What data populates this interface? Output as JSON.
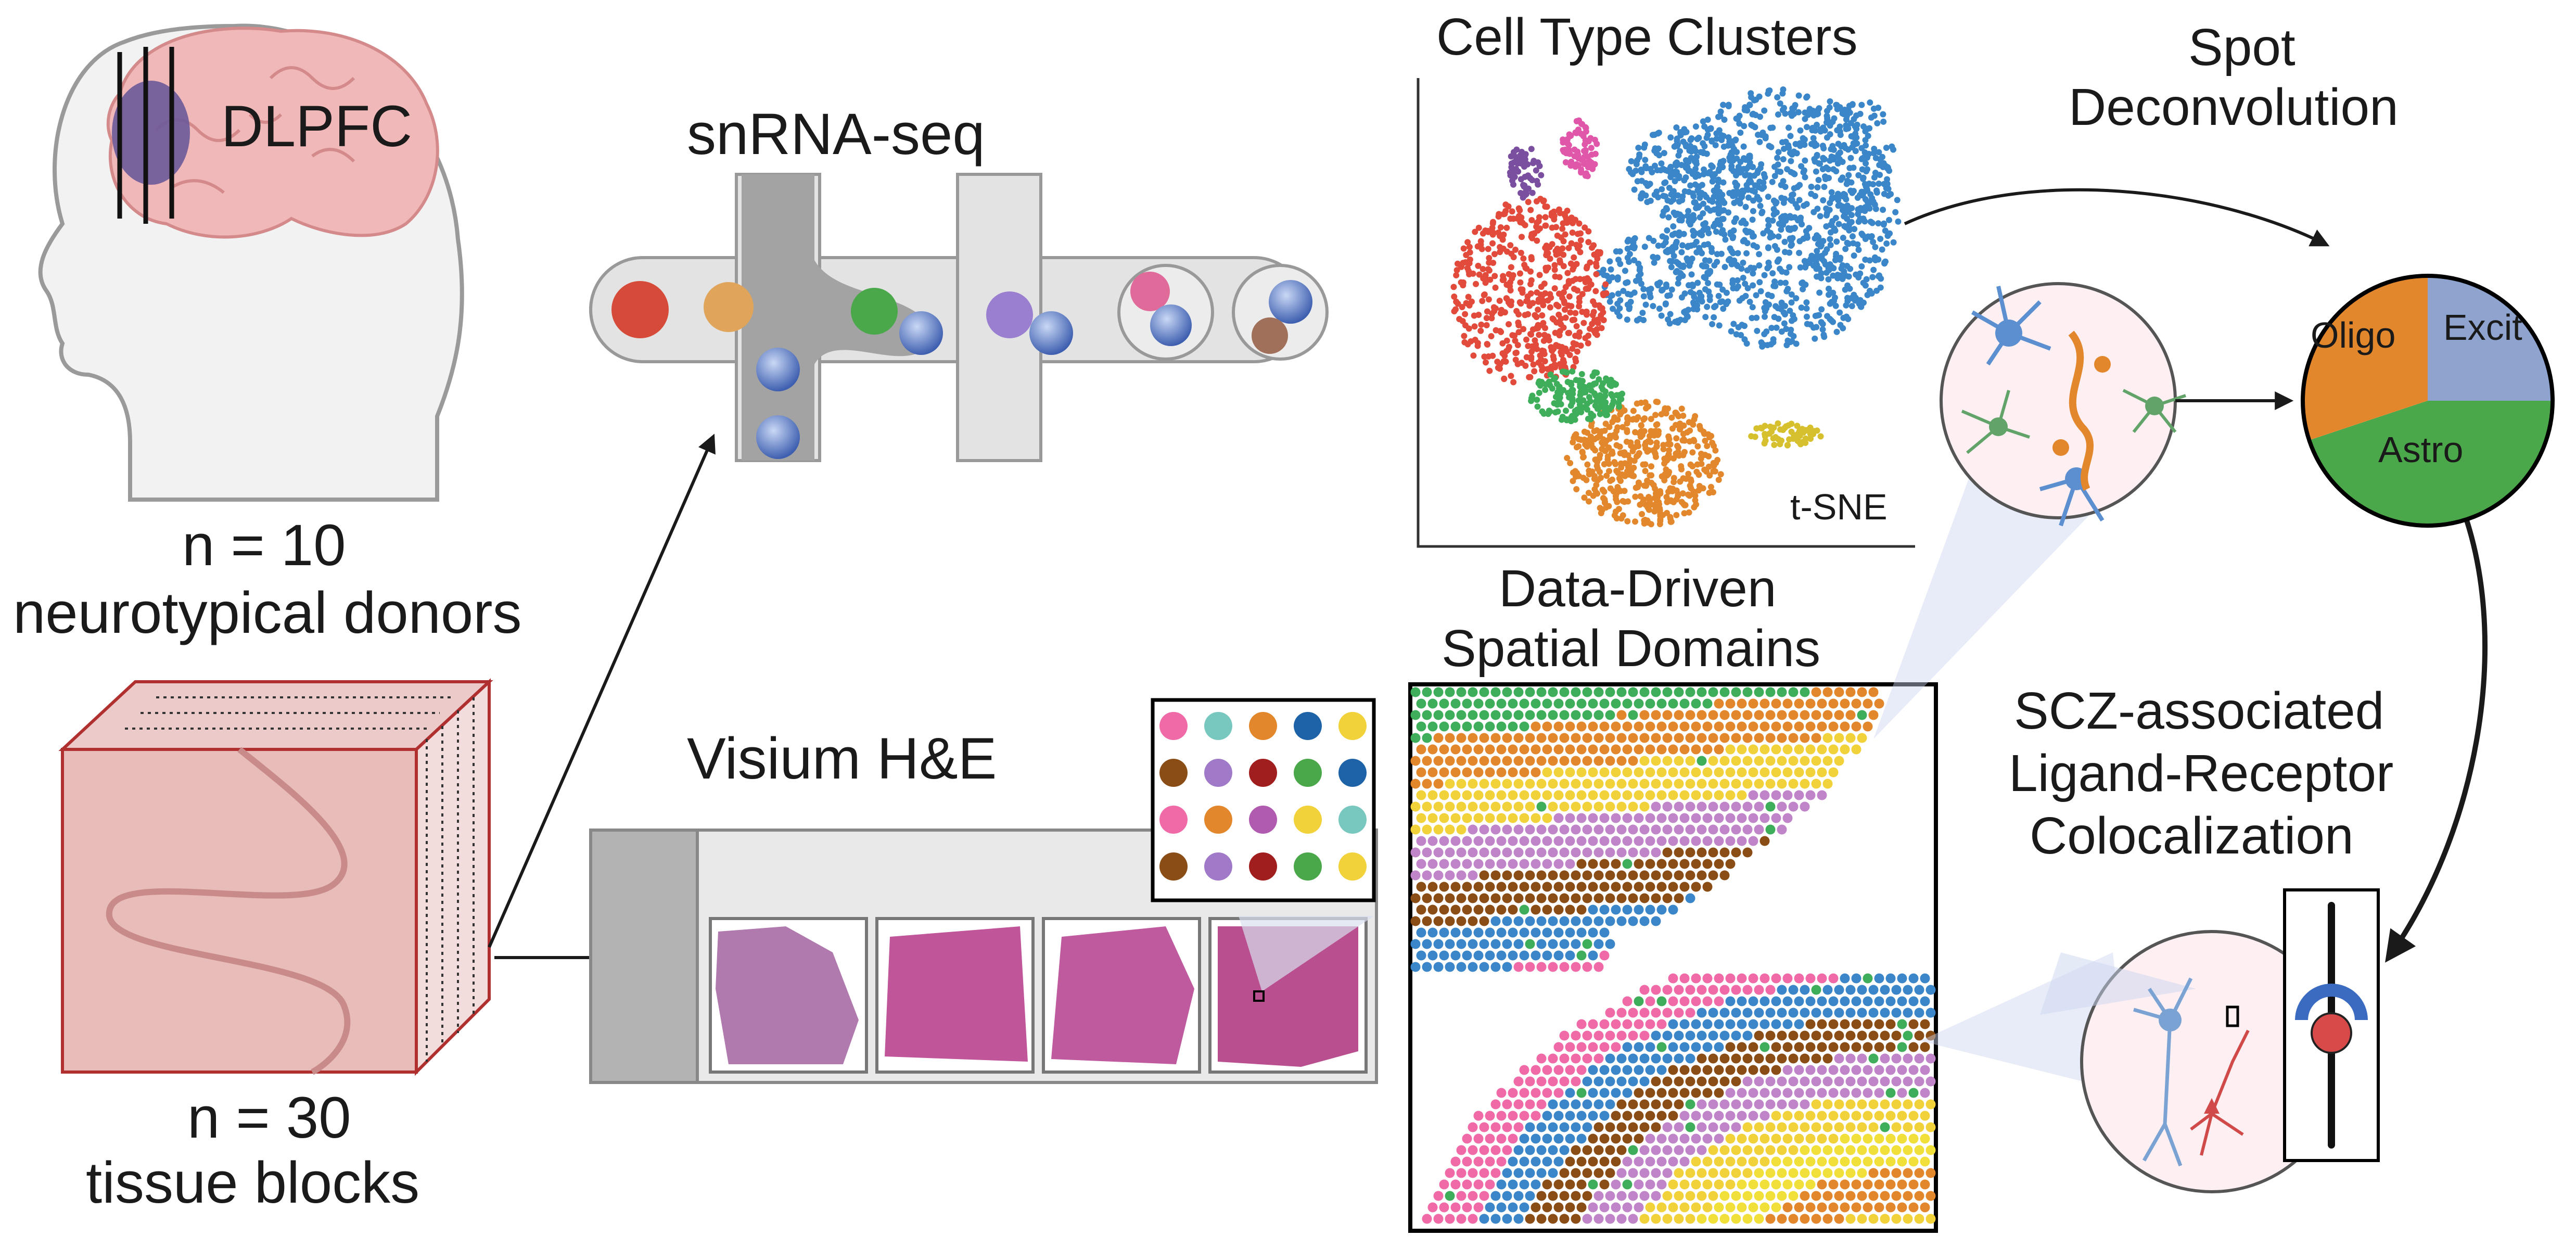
{
  "brain_region_label": "DLPFC",
  "donors": {
    "count": "n = 10",
    "desc": "neurotypical donors"
  },
  "tissue": {
    "count": "n = 30",
    "desc": "tissue blocks"
  },
  "snrna": {
    "title": "snRNA-seq"
  },
  "visium": {
    "title": "Visium H&E"
  },
  "clusters": {
    "title": "Cell Type Clusters",
    "axis_label": "t-SNE"
  },
  "domains": {
    "title_line1": "Data-Driven",
    "title_line2": "Spatial Domains"
  },
  "deconv": {
    "title_line1": "Spot",
    "title_line2": "Deconvolution",
    "pie_labels": {
      "excit": "Excit",
      "oligo": "Oligo",
      "astro": "Astro"
    }
  },
  "lr": {
    "line1": "SCZ-associated",
    "line2": "Ligand-Receptor",
    "line3": "Colocalization"
  },
  "colors": {
    "brain": "#f0b8b8",
    "dlpfc": "#6b5a9a",
    "block": "#e8bcb8",
    "block_edge": "#b03030",
    "excit": "#8fa3cf",
    "oligo": "#e3872d",
    "astro": "#4aa84a",
    "blue": "#3a86c8",
    "orange": "#e3872d",
    "red": "#e24b3b",
    "green": "#3fae5a",
    "purple": "#7b4fa0",
    "pink": "#e056a8",
    "yellow": "#d7c02e",
    "brown": "#8b4d16",
    "spot_pink": "#f06aa8",
    "gold": "#f2d23a"
  }
}
